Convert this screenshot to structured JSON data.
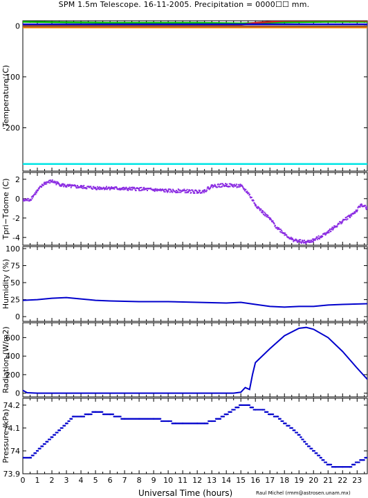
{
  "title": "SPM 1.5m Telescope. 16-11-2005. Precipitation = 0000☐☐ mm.",
  "credit": "Raul Michel (rmm@astrosen.unam.mx)",
  "chart_data": [
    {
      "type": "line",
      "panel": "temperature",
      "ylabel": "Temperature (C)",
      "xlim": [
        0,
        23.7
      ],
      "ylim": [
        -285,
        10
      ],
      "yticks": [
        0,
        -100,
        -200
      ],
      "series": [
        {
          "color": "#00bb00",
          "x": [
            0,
            3,
            6,
            9,
            12,
            15,
            18,
            21,
            23.7
          ],
          "values": [
            8,
            7,
            6,
            6,
            6,
            5,
            7,
            8,
            8
          ]
        },
        {
          "color": "#cc2222",
          "x": [
            0,
            3,
            6,
            9,
            12,
            15,
            16,
            18,
            21,
            23.7
          ],
          "values": [
            2,
            2,
            2,
            2,
            2,
            2,
            6,
            10,
            11,
            10
          ]
        },
        {
          "color": "#0000cc",
          "x": [
            0,
            4,
            8,
            12,
            15,
            18,
            23.7
          ],
          "values": [
            3,
            3,
            3,
            3,
            3,
            3,
            3
          ]
        },
        {
          "color": "#ff8800",
          "x": [
            0,
            23.7
          ],
          "values": [
            -3,
            -3
          ]
        },
        {
          "color": "#a05a2c",
          "x": [
            0,
            23.7
          ],
          "values": [
            -1,
            -1
          ]
        },
        {
          "color": "#00e5e5",
          "x": [
            0,
            23.7
          ],
          "values": [
            -271,
            -271
          ]
        }
      ]
    },
    {
      "type": "scatter",
      "panel": "tpri-tdome",
      "ylabel": "Tpri−Tdome (C)",
      "xlim": [
        0,
        23.7
      ],
      "ylim": [
        -4.8,
        2.7
      ],
      "yticks": [
        2,
        0,
        -2,
        -4
      ],
      "color": "#8a2be2",
      "x": [
        0,
        0.5,
        1,
        1.5,
        2,
        2.5,
        3,
        4,
        5,
        6,
        7,
        8,
        9,
        10,
        11,
        12,
        12.5,
        13,
        14,
        15,
        15.5,
        16,
        16.5,
        17,
        17.5,
        18,
        18.5,
        19,
        19.5,
        20,
        20.5,
        21,
        21.5,
        22,
        22.5,
        23,
        23.3,
        23.7
      ],
      "values": [
        -0.2,
        -0.1,
        0.8,
        1.6,
        1.8,
        1.5,
        1.3,
        1.2,
        1.1,
        1.1,
        1.0,
        1.0,
        0.9,
        0.8,
        0.8,
        0.7,
        0.8,
        1.3,
        1.4,
        1.3,
        0.6,
        -0.6,
        -1.4,
        -2.1,
        -3.0,
        -3.6,
        -4.2,
        -4.4,
        -4.5,
        -4.3,
        -3.9,
        -3.4,
        -2.9,
        -2.3,
        -1.8,
        -1.2,
        -0.6,
        -1.0
      ]
    },
    {
      "type": "line",
      "panel": "humidity",
      "ylabel": "Humidity (%)",
      "xlim": [
        0,
        23.7
      ],
      "ylim": [
        -7,
        103
      ],
      "yticks": [
        0,
        25,
        50,
        75,
        100
      ],
      "color": "#0000cc",
      "x": [
        0,
        1,
        2,
        3,
        4,
        5,
        6,
        8,
        10,
        12,
        14,
        15,
        16,
        17,
        18,
        19,
        20,
        21,
        22,
        23.7
      ],
      "values": [
        24,
        25,
        27,
        28,
        26,
        24,
        23,
        22,
        22,
        21,
        20,
        21,
        18,
        15,
        14,
        15,
        15,
        17,
        18,
        19
      ]
    },
    {
      "type": "line",
      "panel": "radiation",
      "ylabel": "Radiation (W/m2)",
      "xlim": [
        0,
        23.7
      ],
      "ylim": [
        -40,
        760
      ],
      "yticks": [
        0,
        200,
        400,
        600
      ],
      "color": "#0000cc",
      "x": [
        0,
        0.3,
        1,
        5,
        10,
        14.5,
        15,
        15.3,
        15.6,
        15.8,
        16,
        16.2,
        17,
        18,
        19,
        19.5,
        20,
        21,
        22,
        23,
        23.7
      ],
      "values": [
        30,
        5,
        0,
        0,
        0,
        0,
        10,
        60,
        40,
        200,
        330,
        360,
        480,
        620,
        700,
        710,
        690,
        600,
        450,
        270,
        150
      ]
    },
    {
      "type": "scatter",
      "panel": "pressure",
      "ylabel": "Pressure (kPa)",
      "xlabel": "Universal Time (hours)",
      "xlim": [
        0,
        23.7
      ],
      "ylim": [
        73.9,
        74.23
      ],
      "yticks": [
        73.9,
        74,
        74.1,
        74.2
      ],
      "xticks": [
        0,
        1,
        2,
        3,
        4,
        5,
        6,
        7,
        8,
        9,
        10,
        11,
        12,
        13,
        14,
        15,
        16,
        17,
        18,
        19,
        20,
        21,
        22,
        23
      ],
      "color": "#0000cc",
      "x": [
        0,
        0.5,
        1,
        1.5,
        2,
        2.5,
        3,
        3.5,
        4,
        4.5,
        5,
        6,
        7,
        8,
        9,
        10,
        10.5,
        11,
        12,
        12.5,
        13,
        13.5,
        14,
        14.5,
        15,
        15.5,
        16,
        16.5,
        17,
        17.5,
        18,
        18.5,
        19,
        19.5,
        20,
        20.5,
        21,
        21.5,
        22,
        22.5,
        23,
        23.7
      ],
      "values": [
        73.97,
        73.97,
        74.0,
        74.03,
        74.06,
        74.09,
        74.12,
        74.15,
        74.15,
        74.16,
        74.17,
        74.16,
        74.14,
        74.14,
        74.14,
        74.13,
        74.12,
        74.12,
        74.12,
        74.12,
        74.13,
        74.14,
        74.16,
        74.18,
        74.2,
        74.2,
        74.18,
        74.18,
        74.16,
        74.15,
        74.12,
        74.1,
        74.07,
        74.03,
        74.0,
        73.97,
        73.94,
        73.93,
        73.93,
        73.93,
        73.95,
        73.97
      ]
    }
  ]
}
